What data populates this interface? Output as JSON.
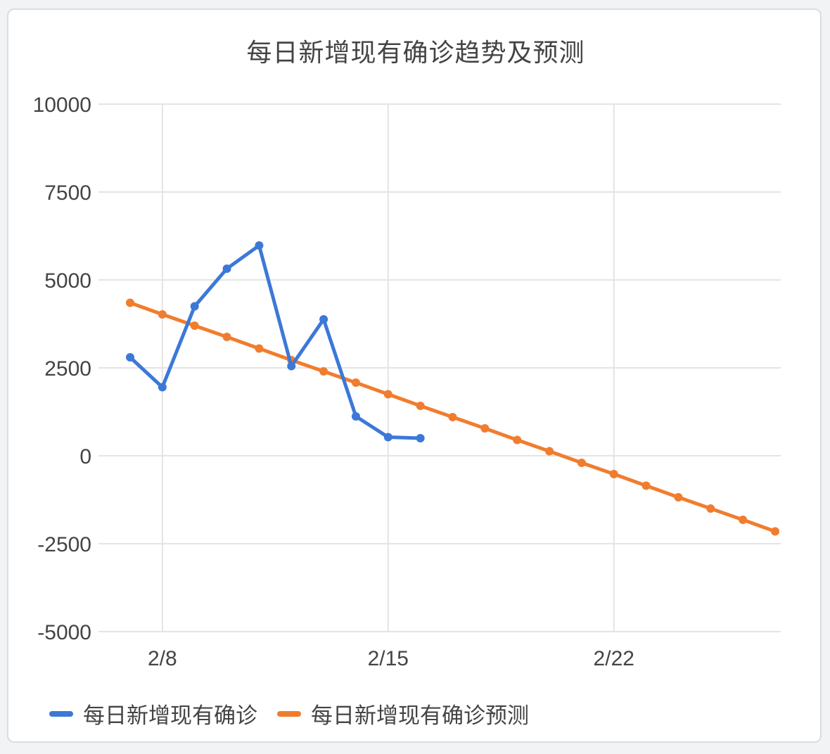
{
  "chart_data": {
    "type": "line",
    "title": "每日新增现有确诊趋势及预测",
    "xlabel": "",
    "ylabel": "",
    "x_start_label": "2/7",
    "x_tick_labels": [
      "2/8",
      "2/15",
      "2/22"
    ],
    "y_ticks": [
      "10000",
      "7500",
      "5000",
      "2500",
      "0",
      "-2500",
      "-5000"
    ],
    "ylim": [
      -5000,
      10000
    ],
    "grid": true,
    "legend_position": "bottom",
    "series": [
      {
        "name": "每日新增现有确诊",
        "color": "#3c78d8",
        "dates": [
          "2/7",
          "2/8",
          "2/9",
          "2/10",
          "2/11",
          "2/12",
          "2/13",
          "2/14",
          "2/15",
          "2/16"
        ],
        "values": [
          2800,
          1950,
          4250,
          5320,
          5980,
          2550,
          3880,
          1120,
          530,
          500
        ]
      },
      {
        "name": "每日新增现有确诊预测",
        "color": "#f07d2e",
        "dates": [
          "2/7",
          "2/8",
          "2/9",
          "2/10",
          "2/11",
          "2/12",
          "2/13",
          "2/14",
          "2/15",
          "2/16",
          "2/17",
          "2/18",
          "2/19",
          "2/20",
          "2/21",
          "2/22",
          "2/23",
          "2/24",
          "2/25",
          "2/26",
          "2/27"
        ],
        "values": [
          4350,
          4020,
          3700,
          3380,
          3050,
          2720,
          2400,
          2080,
          1750,
          1420,
          1100,
          780,
          450,
          130,
          -200,
          -520,
          -850,
          -1180,
          -1500,
          -1820,
          -2150
        ]
      }
    ]
  }
}
